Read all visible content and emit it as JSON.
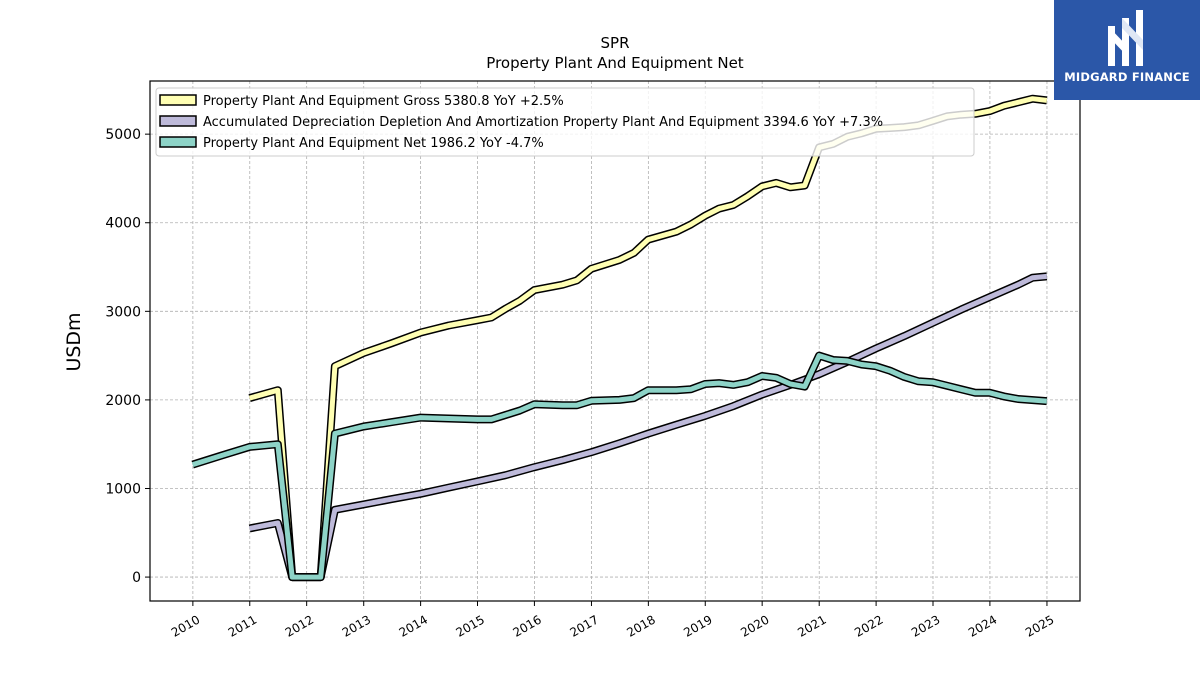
{
  "chart_data": {
    "type": "line",
    "title": "SPR",
    "subtitle": "Property Plant And Equipment Net",
    "ylabel": "USDm",
    "xlabel": "",
    "ylim": [
      -270,
      5600
    ],
    "xlim": [
      "2009-04-01",
      "2025-08-01"
    ],
    "grid": true,
    "legend_position": "top-left",
    "x_ticks": [
      "2010",
      "2011",
      "2012",
      "2013",
      "2014",
      "2015",
      "2016",
      "2017",
      "2018",
      "2019",
      "2020",
      "2021",
      "2022",
      "2023",
      "2024",
      "2025"
    ],
    "y_ticks": [
      "0",
      "1000",
      "2000",
      "3000",
      "4000",
      "5000"
    ],
    "series": [
      {
        "name": "Property Plant And Equipment Gross",
        "legend": "Property Plant And Equipment Gross  5380.8 YoY +2.5%",
        "color": "#ffffb3",
        "points": [
          [
            "2010-12-31",
            2020
          ],
          [
            "2011-06-30",
            2110
          ],
          [
            "2011-09-30",
            0
          ],
          [
            "2011-12-31",
            0
          ],
          [
            "2012-03-31",
            0
          ],
          [
            "2012-06-30",
            2380
          ],
          [
            "2012-12-31",
            2530
          ],
          [
            "2013-06-30",
            2640
          ],
          [
            "2013-12-31",
            2760
          ],
          [
            "2014-06-30",
            2840
          ],
          [
            "2014-12-31",
            2900
          ],
          [
            "2015-03-31",
            2930
          ],
          [
            "2015-06-30",
            3030
          ],
          [
            "2015-09-30",
            3120
          ],
          [
            "2015-12-31",
            3240
          ],
          [
            "2016-06-30",
            3300
          ],
          [
            "2016-09-30",
            3350
          ],
          [
            "2016-12-31",
            3480
          ],
          [
            "2017-06-30",
            3580
          ],
          [
            "2017-09-30",
            3660
          ],
          [
            "2017-12-31",
            3810
          ],
          [
            "2018-06-30",
            3900
          ],
          [
            "2018-09-30",
            3980
          ],
          [
            "2018-12-31",
            4080
          ],
          [
            "2019-03-31",
            4160
          ],
          [
            "2019-06-30",
            4200
          ],
          [
            "2019-09-30",
            4300
          ],
          [
            "2019-12-31",
            4410
          ],
          [
            "2020-03-31",
            4450
          ],
          [
            "2020-06-30",
            4400
          ],
          [
            "2020-09-30",
            4420
          ],
          [
            "2020-12-31",
            4850
          ],
          [
            "2021-03-31",
            4890
          ],
          [
            "2021-06-30",
            4970
          ],
          [
            "2021-09-30",
            5010
          ],
          [
            "2021-12-31",
            5060
          ],
          [
            "2022-03-31",
            5070
          ],
          [
            "2022-06-30",
            5080
          ],
          [
            "2022-09-30",
            5100
          ],
          [
            "2022-12-31",
            5150
          ],
          [
            "2023-03-31",
            5200
          ],
          [
            "2023-06-30",
            5220
          ],
          [
            "2023-09-30",
            5230
          ],
          [
            "2023-12-31",
            5260
          ],
          [
            "2024-03-31",
            5320
          ],
          [
            "2024-06-30",
            5360
          ],
          [
            "2024-09-30",
            5400
          ],
          [
            "2024-12-31",
            5380.8
          ]
        ]
      },
      {
        "name": "Accumulated Depreciation Depletion And Amortization Property Plant And Equipment",
        "legend": "Accumulated Depreciation Depletion And Amortization Property Plant And Equipment  3394.6 YoY +7.3%",
        "color": "#bebada",
        "points": [
          [
            "2010-12-31",
            550
          ],
          [
            "2011-06-30",
            610
          ],
          [
            "2011-09-30",
            0
          ],
          [
            "2011-12-31",
            0
          ],
          [
            "2012-03-31",
            0
          ],
          [
            "2012-06-30",
            760
          ],
          [
            "2012-12-31",
            820
          ],
          [
            "2013-06-30",
            880
          ],
          [
            "2013-12-31",
            940
          ],
          [
            "2014-06-30",
            1010
          ],
          [
            "2014-12-31",
            1080
          ],
          [
            "2015-06-30",
            1150
          ],
          [
            "2015-12-31",
            1240
          ],
          [
            "2016-06-30",
            1320
          ],
          [
            "2016-12-31",
            1410
          ],
          [
            "2017-06-30",
            1510
          ],
          [
            "2017-12-31",
            1620
          ],
          [
            "2018-06-30",
            1720
          ],
          [
            "2018-12-31",
            1820
          ],
          [
            "2019-06-30",
            1930
          ],
          [
            "2019-12-31",
            2060
          ],
          [
            "2020-06-30",
            2170
          ],
          [
            "2020-12-31",
            2290
          ],
          [
            "2021-06-30",
            2430
          ],
          [
            "2021-12-31",
            2580
          ],
          [
            "2022-06-30",
            2720
          ],
          [
            "2022-12-31",
            2870
          ],
          [
            "2023-06-30",
            3020
          ],
          [
            "2023-12-31",
            3160
          ],
          [
            "2024-06-30",
            3300
          ],
          [
            "2024-09-30",
            3380
          ],
          [
            "2024-12-31",
            3394.6
          ]
        ]
      },
      {
        "name": "Property Plant And Equipment Net",
        "legend": "Property Plant And Equipment Net  1986.2 YoY -4.7%",
        "color": "#8dd3c7",
        "points": [
          [
            "2009-12-31",
            1270
          ],
          [
            "2010-06-30",
            1370
          ],
          [
            "2010-12-31",
            1470
          ],
          [
            "2011-06-30",
            1500
          ],
          [
            "2011-09-30",
            0
          ],
          [
            "2011-12-31",
            0
          ],
          [
            "2012-03-31",
            0
          ],
          [
            "2012-06-30",
            1620
          ],
          [
            "2012-12-31",
            1700
          ],
          [
            "2013-06-30",
            1750
          ],
          [
            "2013-12-31",
            1800
          ],
          [
            "2014-06-30",
            1790
          ],
          [
            "2014-12-31",
            1780
          ],
          [
            "2015-03-31",
            1780
          ],
          [
            "2015-06-30",
            1830
          ],
          [
            "2015-09-30",
            1880
          ],
          [
            "2015-12-31",
            1950
          ],
          [
            "2016-06-30",
            1940
          ],
          [
            "2016-09-30",
            1940
          ],
          [
            "2016-12-31",
            1990
          ],
          [
            "2017-06-30",
            2000
          ],
          [
            "2017-09-30",
            2020
          ],
          [
            "2017-12-31",
            2110
          ],
          [
            "2018-06-30",
            2110
          ],
          [
            "2018-09-30",
            2120
          ],
          [
            "2018-12-31",
            2180
          ],
          [
            "2019-03-31",
            2190
          ],
          [
            "2019-06-30",
            2170
          ],
          [
            "2019-09-30",
            2200
          ],
          [
            "2019-12-31",
            2270
          ],
          [
            "2020-03-31",
            2250
          ],
          [
            "2020-06-30",
            2180
          ],
          [
            "2020-09-30",
            2150
          ],
          [
            "2020-12-31",
            2500
          ],
          [
            "2021-03-31",
            2450
          ],
          [
            "2021-06-30",
            2440
          ],
          [
            "2021-09-30",
            2400
          ],
          [
            "2021-12-31",
            2380
          ],
          [
            "2022-03-31",
            2330
          ],
          [
            "2022-06-30",
            2260
          ],
          [
            "2022-09-30",
            2210
          ],
          [
            "2022-12-31",
            2200
          ],
          [
            "2023-03-31",
            2160
          ],
          [
            "2023-06-30",
            2120
          ],
          [
            "2023-09-30",
            2080
          ],
          [
            "2023-12-31",
            2080
          ],
          [
            "2024-03-31",
            2040
          ],
          [
            "2024-06-30",
            2010
          ],
          [
            "2024-12-31",
            1986.2
          ]
        ]
      }
    ]
  },
  "logo": {
    "text": "MIDGARD FINANCE",
    "background": "#2b57a8"
  }
}
